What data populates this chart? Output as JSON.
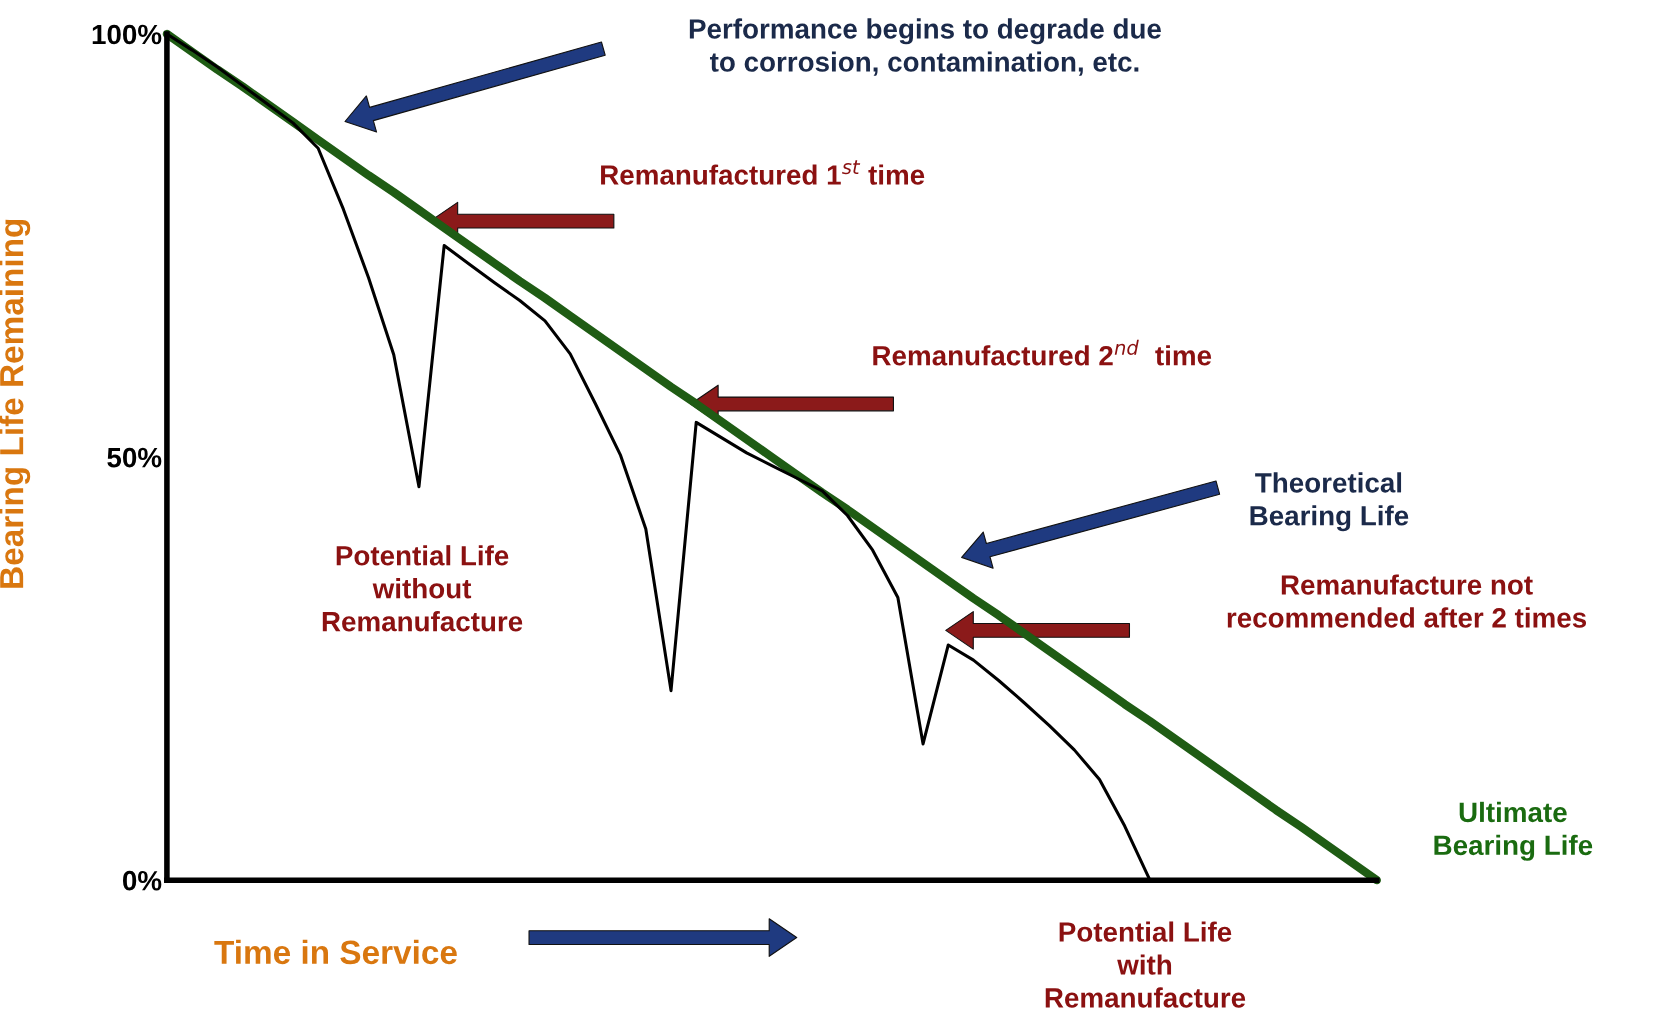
{
  "chart_data": {
    "type": "line",
    "xlabel": "Time in Service",
    "ylabel": "Bearing Life Remaining",
    "ylim": [
      0,
      100
    ],
    "yticks": [
      {
        "value": 0,
        "label": "0%"
      },
      {
        "value": 50,
        "label": "50%"
      },
      {
        "value": 100,
        "label": "100%"
      }
    ],
    "tick_labels": "y",
    "categories": [
      null,
      null,
      null,
      null,
      null,
      null,
      null,
      null,
      null,
      null,
      null,
      null,
      null,
      null,
      null,
      null,
      null,
      null,
      null,
      null,
      null,
      null,
      null,
      null,
      null,
      null,
      null,
      null,
      null,
      null,
      null,
      null,
      null,
      null,
      null,
      null,
      null,
      null,
      null,
      null,
      null,
      null,
      null,
      null,
      null,
      null,
      null,
      null,
      null
    ],
    "series": [
      {
        "color": "#1f5c14",
        "values": [
          100,
          97.9,
          95.8,
          93.8,
          91.7,
          89.6,
          87.5,
          85.4,
          83.3,
          81.3,
          79.2,
          77.1,
          75.0,
          72.9,
          70.8,
          68.8,
          66.7,
          64.6,
          62.5,
          60.4,
          58.3,
          56.3,
          54.2,
          52.1,
          50.0,
          47.9,
          45.8,
          43.8,
          41.7,
          39.6,
          37.5,
          35.4,
          33.3,
          31.3,
          29.2,
          27.1,
          25.0,
          22.9,
          20.8,
          18.8,
          16.7,
          14.6,
          12.5,
          10.4,
          8.3,
          6.3,
          4.2,
          2.1,
          0
        ]
      },
      {
        "color": "#000000",
        "values": [
          100,
          98.1,
          96.1,
          93.9,
          91.7,
          89.5,
          86.5,
          79.3,
          71.2,
          62.1,
          46.5,
          75.0,
          72.8,
          70.6,
          68.5,
          66.1,
          62.2,
          56.3,
          50.2,
          41.5,
          22.4,
          54.1,
          52.3,
          50.5,
          49.0,
          47.5,
          46.0,
          43.1,
          39.0,
          33.4,
          16.1,
          27.8,
          26.0,
          23.6,
          21.0,
          18.3,
          15.4,
          11.9,
          6.4,
          0,
          null,
          null,
          null,
          null,
          null,
          null,
          null,
          null,
          null
        ]
      }
    ],
    "annotations": [
      "Performance begins to degrade due\nto corrosion, contamination, etc.",
      "Remanufactured 1$^{st}$ time",
      "Remanufactured 2$^{nd}$  time",
      "Theoretical\nBearing Life",
      "Remanufacture not\nrecommended after 2 times",
      "Potential Life\nwithout\nRemanufacture",
      "Ultimate\nBearing Life",
      "Potential Life\nwith\nRemanufacture"
    ]
  }
}
